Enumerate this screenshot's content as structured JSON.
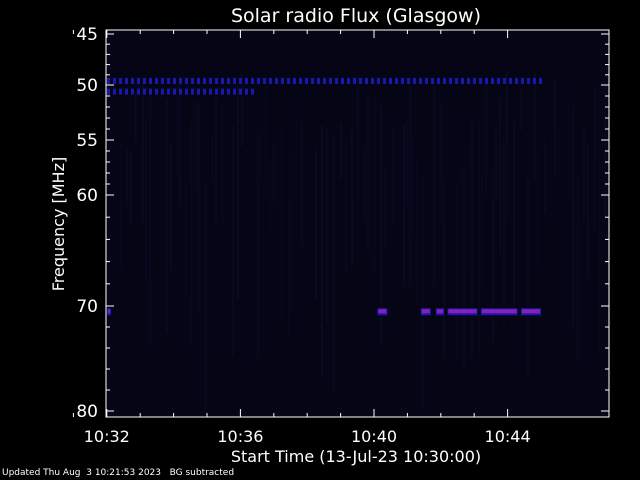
{
  "chart_data": {
    "type": "heatmap",
    "title": "Solar radio Flux (Glasgow)",
    "xlabel": "Start Time (13-Jul-23 10:30:00)",
    "ylabel": "Frequency [MHz]",
    "x_ticks": [
      "10:32",
      "10:36",
      "10:40",
      "10:44"
    ],
    "x_tick_values_min": [
      2,
      6,
      10,
      14
    ],
    "xlim_min": [
      0,
      15
    ],
    "y_ticks": [
      45,
      50,
      55,
      60,
      70,
      80
    ],
    "ylim": [
      45,
      80
    ],
    "colors": {
      "background": "#000000",
      "plot_bg": "#050516",
      "axis": "#ffffff",
      "band_low": "#1818b0",
      "band_high": "#8a1fb8"
    },
    "features": [
      {
        "name": "",
        "freq_mhz": 49.6,
        "t_start": 0.1,
        "t_end": 15.0,
        "level": "low",
        "style": "dashed"
      },
      {
        "name": "",
        "freq_mhz": 50.6,
        "t_start": 0.4,
        "t_end": 6.4,
        "level": "low",
        "style": "dashed"
      },
      {
        "name": "",
        "freq_mhz": 70.5,
        "t_start": 0.4,
        "t_end": 0.55,
        "level": "high",
        "style": "solid"
      },
      {
        "name": "",
        "freq_mhz": 70.5,
        "t_start": 10.1,
        "t_end": 10.4,
        "level": "high",
        "style": "solid"
      },
      {
        "name": "",
        "freq_mhz": 70.5,
        "t_start": 11.4,
        "t_end": 11.7,
        "level": "high",
        "style": "solid"
      },
      {
        "name": "",
        "freq_mhz": 70.5,
        "t_start": 11.85,
        "t_end": 12.1,
        "level": "high",
        "style": "solid"
      },
      {
        "name": "",
        "freq_mhz": 70.5,
        "t_start": 12.2,
        "t_end": 13.1,
        "level": "high",
        "style": "solid"
      },
      {
        "name": "",
        "freq_mhz": 70.5,
        "t_start": 13.2,
        "t_end": 14.3,
        "level": "high",
        "style": "solid"
      },
      {
        "name": "",
        "freq_mhz": 70.5,
        "t_start": 14.4,
        "t_end": 15.0,
        "level": "high",
        "style": "solid"
      }
    ]
  },
  "footer": {
    "updated": "Updated Thu Aug  3 10:21:53 2023",
    "note": "BG subtracted"
  }
}
